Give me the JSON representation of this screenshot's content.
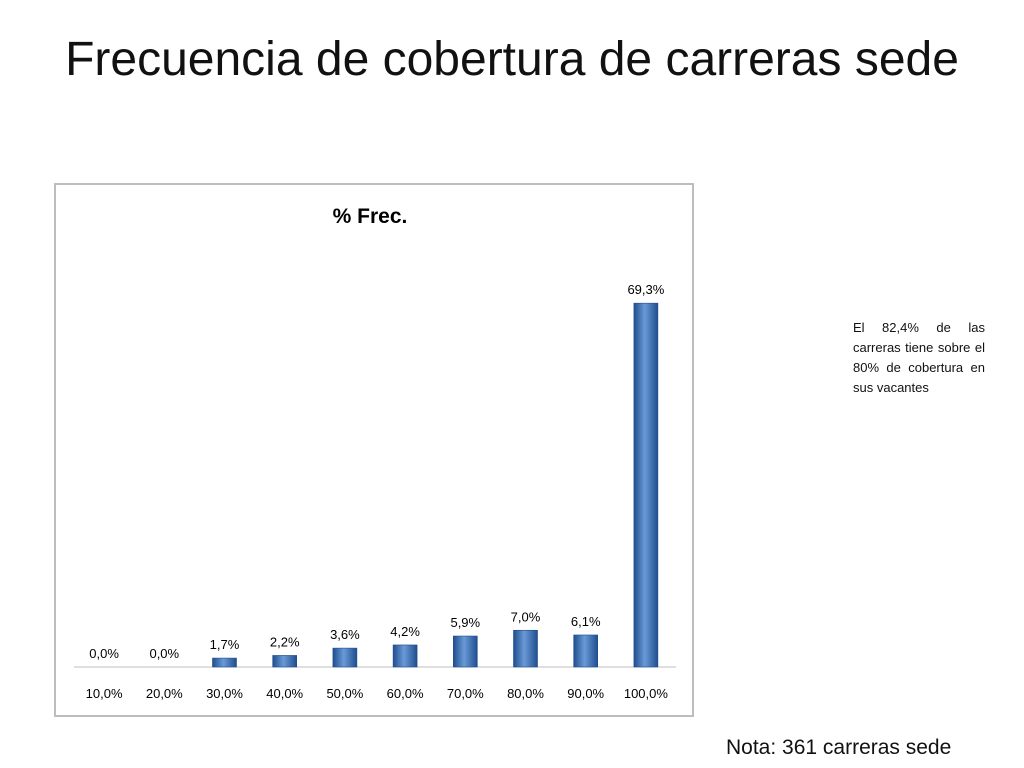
{
  "slide": {
    "title": "Frecuencia de cobertura de carreras sede",
    "side_note": "El 82,4% de las carreras tiene sobre el 80% de cobertura en sus vacantes",
    "footnote": "Nota: 361 carreras sede"
  },
  "chart_data": {
    "type": "bar",
    "title": "% Frec.",
    "xlabel": "",
    "ylabel": "",
    "categories": [
      "10,0%",
      "20,0%",
      "30,0%",
      "40,0%",
      "50,0%",
      "60,0%",
      "70,0%",
      "80,0%",
      "90,0%",
      "100,0%"
    ],
    "values": [
      0.0,
      0.0,
      1.7,
      2.2,
      3.6,
      4.2,
      5.9,
      7.0,
      6.1,
      69.3
    ],
    "value_labels": [
      "0,0%",
      "0,0%",
      "1,7%",
      "2,2%",
      "3,6%",
      "4,2%",
      "5,9%",
      "7,0%",
      "6,1%",
      "69,3%"
    ],
    "ylim": [
      0,
      80
    ],
    "grid": false,
    "legend": "none",
    "bar_color": "#3a6fba",
    "bar_color_dark": "#1f4d8f",
    "bar_color_light": "#6a9ad6"
  }
}
